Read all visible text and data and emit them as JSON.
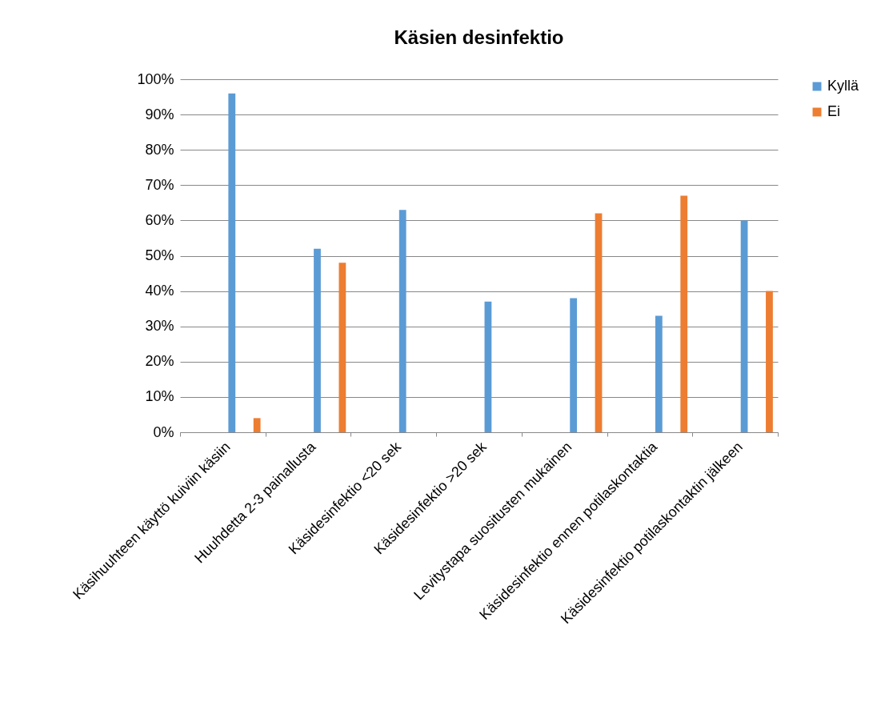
{
  "chart_data": {
    "type": "bar",
    "title": "Käsien desinfektio",
    "categories": [
      "Käsihuuhteen käyttö kuiviin käsiin",
      "Huuhdetta 2-3 painallusta",
      "Käsidesinfektio <20 sek",
      "Käsidesinfektio >20 sek",
      "Levitystapa suositusten mukainen",
      "Käsidesinfektio ennen potilaskontaktia",
      "Käsidesinfektio potilaskontaktin jälkeen"
    ],
    "series": [
      {
        "name": "Kyllä",
        "color": "#5b9bd5",
        "values": [
          96,
          52,
          63,
          37,
          38,
          33,
          60
        ]
      },
      {
        "name": "Ei",
        "color": "#ed7d31",
        "values": [
          4,
          48,
          null,
          null,
          62,
          67,
          40
        ]
      }
    ],
    "ylim": [
      0,
      100
    ],
    "yticks": [
      {
        "value": 0,
        "label": "0%"
      },
      {
        "value": 10,
        "label": "10%"
      },
      {
        "value": 20,
        "label": "20%"
      },
      {
        "value": 30,
        "label": "30%"
      },
      {
        "value": 40,
        "label": "40%"
      },
      {
        "value": 50,
        "label": "50%"
      },
      {
        "value": 60,
        "label": "60%"
      },
      {
        "value": 70,
        "label": "70%"
      },
      {
        "value": 80,
        "label": "80%"
      },
      {
        "value": 90,
        "label": "90%"
      },
      {
        "value": 100,
        "label": "100%"
      }
    ],
    "grid": "y",
    "legend": "right"
  }
}
